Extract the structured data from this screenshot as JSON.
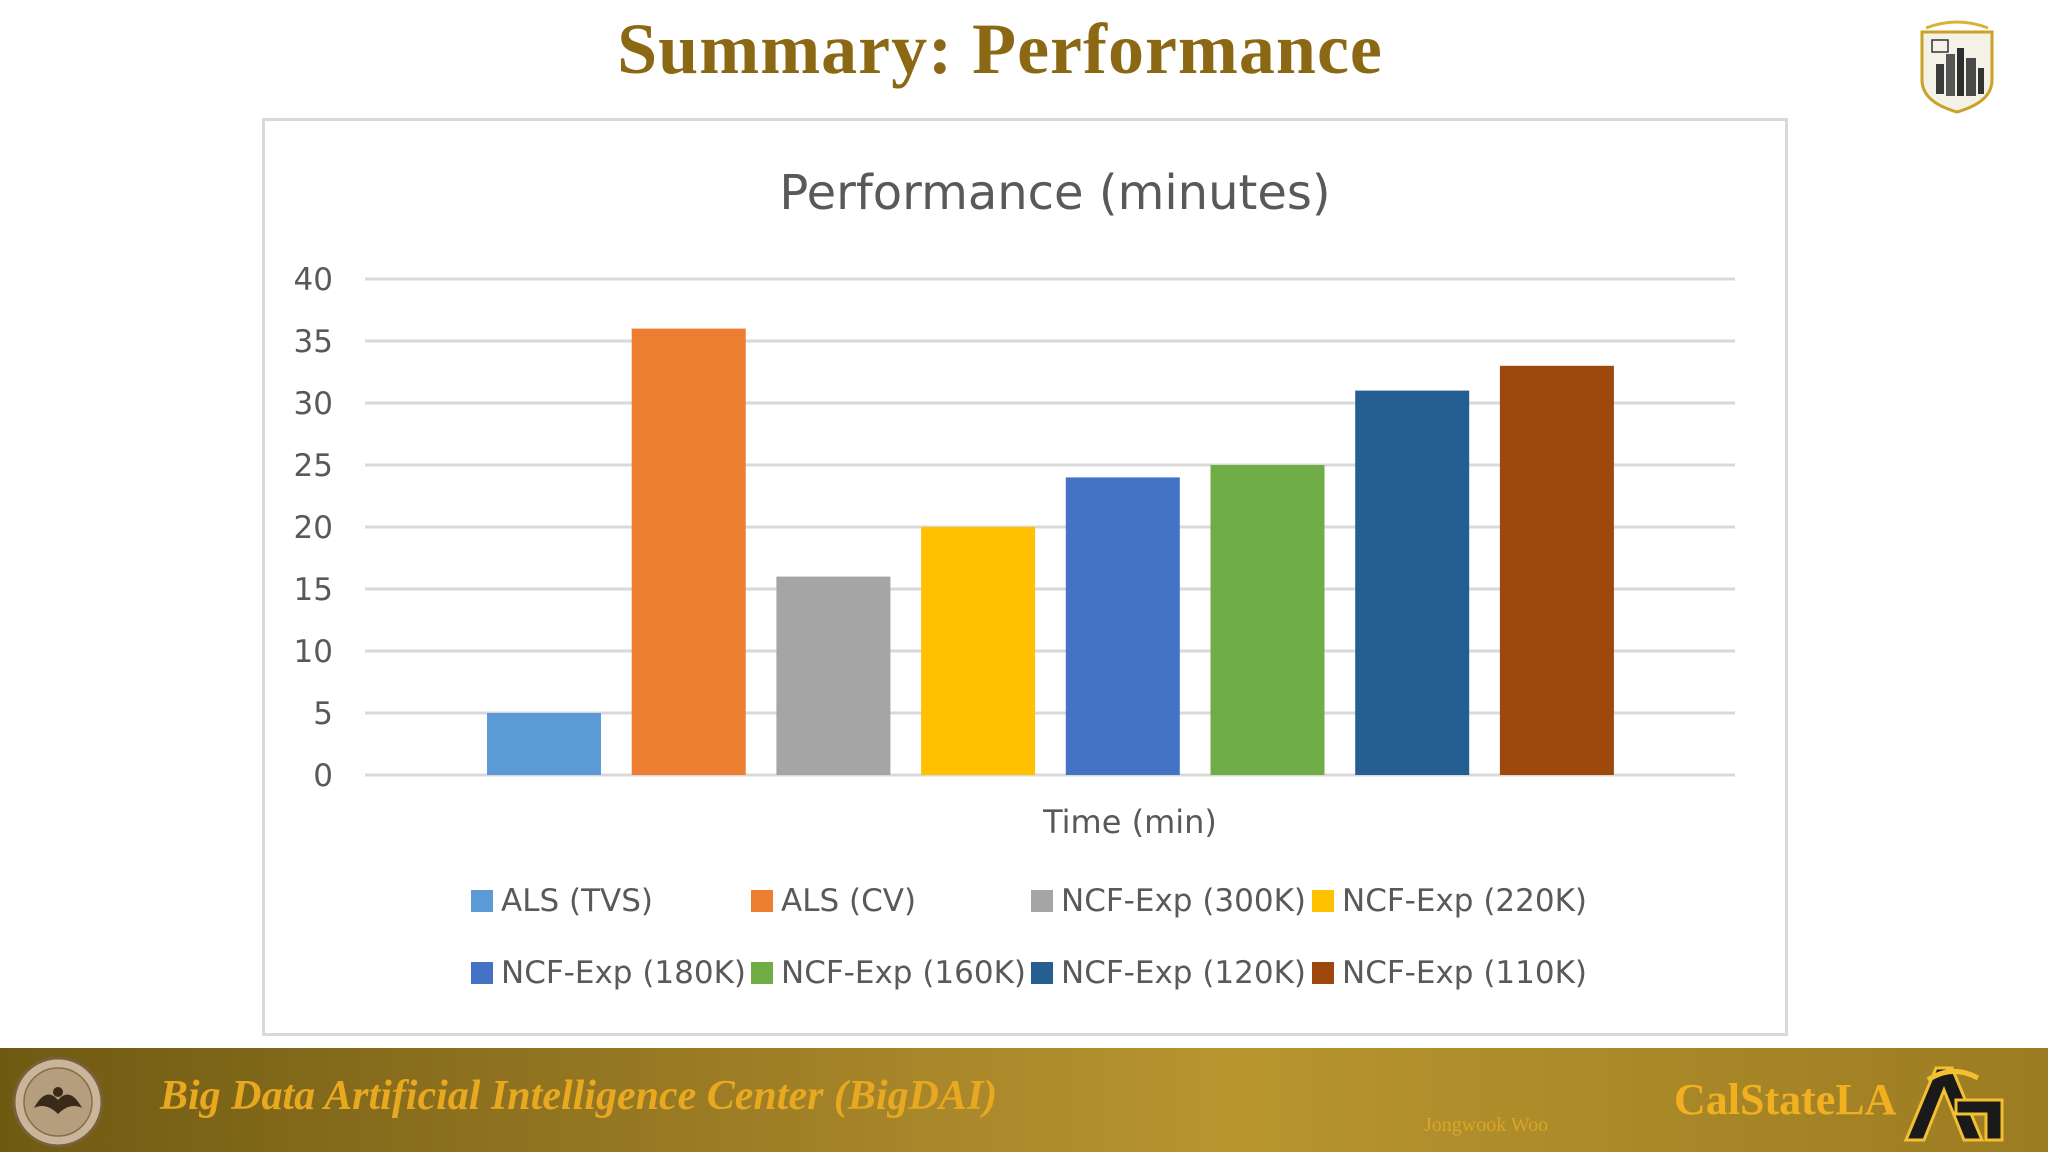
{
  "slide": {
    "title": "Summary: Performance"
  },
  "footer": {
    "center_text": "Big Data Artificial Intelligence Center (BigDAI)",
    "author": "Jongwook Woo",
    "brand": "CalStateLA",
    "seal_icon": "university-seal-icon",
    "brand_mark_icon": "calstate-la-mark-icon",
    "top_logo_icon": "los-angeles-skyline-logo-icon",
    "background_color": "#a8862a",
    "text_color": "#e8a820"
  },
  "chart_data": {
    "type": "bar",
    "title": "Performance (minutes)",
    "xlabel": "Time (min)",
    "ylabel": "",
    "ylim": [
      0,
      40
    ],
    "yticks": [
      0,
      5,
      10,
      15,
      20,
      25,
      30,
      35,
      40
    ],
    "grid": true,
    "legend_position": "bottom",
    "series": [
      {
        "name": "ALS (TVS)",
        "value": 5,
        "color": "#5b9bd5"
      },
      {
        "name": "ALS (CV)",
        "value": 36,
        "color": "#ed7d31"
      },
      {
        "name": "NCF-Exp (300K)",
        "value": 16,
        "color": "#a5a5a5"
      },
      {
        "name": "NCF-Exp (220K)",
        "value": 20,
        "color": "#ffc000"
      },
      {
        "name": "NCF-Exp (180K)",
        "value": 24,
        "color": "#4472c4"
      },
      {
        "name": "NCF-Exp (160K)",
        "value": 25,
        "color": "#70ad47"
      },
      {
        "name": "NCF-Exp (120K)",
        "value": 31,
        "color": "#255e91"
      },
      {
        "name": "NCF-Exp (110K)",
        "value": 33,
        "color": "#9e480e"
      }
    ]
  }
}
